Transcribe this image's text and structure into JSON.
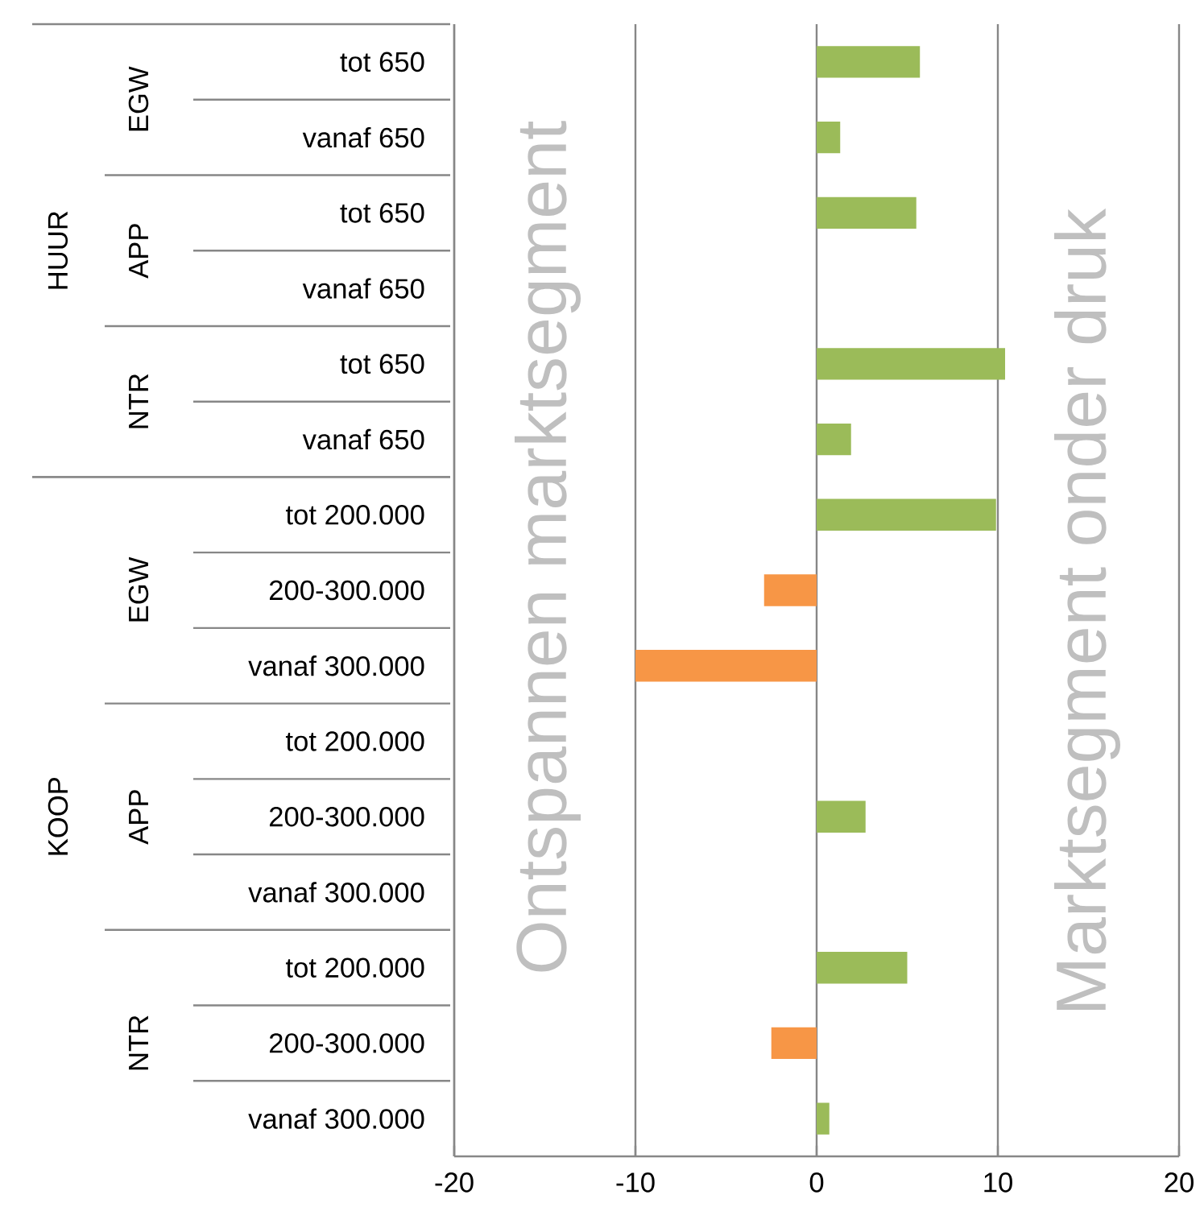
{
  "chart_data": {
    "type": "bar",
    "orientation": "horizontal",
    "categories": [
      "tot 650",
      "vanaf 650",
      "tot 650",
      "vanaf 650",
      "tot 650",
      "vanaf 650",
      "tot 200.000",
      "200-300.000",
      "vanaf 300.000",
      "tot 200.000",
      "200-300.000",
      "vanaf 300.000",
      "tot 200.000",
      "200-300.000",
      "vanaf 300.000"
    ],
    "values": [
      5.7,
      1.3,
      5.5,
      null,
      10.4,
      1.9,
      9.9,
      -2.9,
      -10.0,
      null,
      2.7,
      null,
      5.0,
      -2.5,
      0.7
    ],
    "colors": [
      "#9bbb59",
      "#9bbb59",
      "#9bbb59",
      "#9bbb59",
      "#9bbb59",
      "#9bbb59",
      "#9bbb59",
      "#f79646",
      "#f79646",
      "#9bbb59",
      "#9bbb59",
      "#9bbb59",
      "#9bbb59",
      "#f79646",
      "#9bbb59"
    ],
    "xlim": [
      -20,
      20
    ],
    "xticks": [
      -20,
      -10,
      0,
      10,
      20
    ],
    "grid": "x",
    "annotations": [
      "EGW",
      "APP",
      "NTR",
      "EGW",
      "APP",
      "NTR",
      "HUUR",
      "KOOP",
      "Ontspannen marktsegment",
      "Marktsegment onder druk"
    ]
  }
}
